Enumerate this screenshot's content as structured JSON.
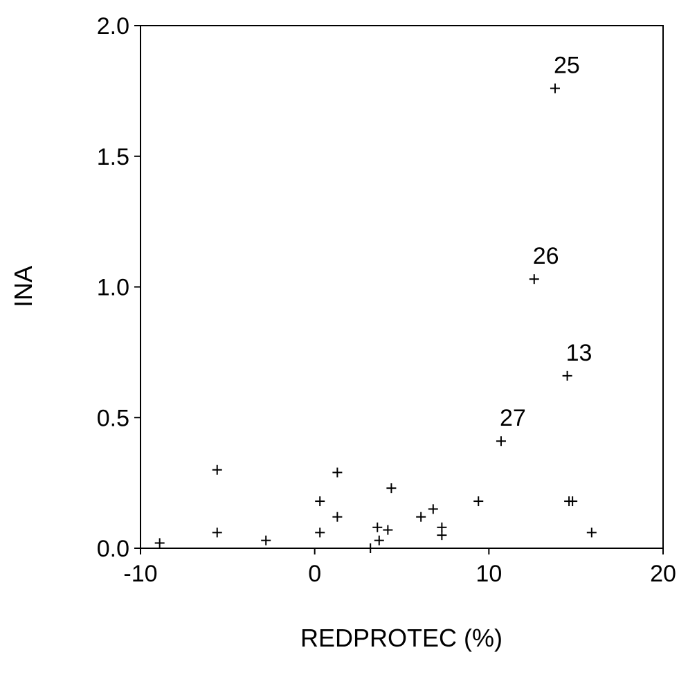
{
  "chart_data": {
    "type": "scatter",
    "title": "",
    "xlabel": "REDPROTEC (%)",
    "ylabel": "INA",
    "xlim": [
      -10,
      20
    ],
    "ylim": [
      0,
      2
    ],
    "xticks": [
      "-10",
      "0",
      "10",
      "20"
    ],
    "yticks": [
      "0.0",
      "0.5",
      "1.0",
      "1.5",
      "2.0"
    ],
    "grid": false,
    "marker": "plus",
    "color": "#000000",
    "points": [
      {
        "x": -8.9,
        "y": 0.02
      },
      {
        "x": -5.6,
        "y": 0.3
      },
      {
        "x": -5.6,
        "y": 0.06
      },
      {
        "x": -2.8,
        "y": 0.03
      },
      {
        "x": 0.3,
        "y": 0.18
      },
      {
        "x": 0.3,
        "y": 0.06
      },
      {
        "x": 1.3,
        "y": 0.29
      },
      {
        "x": 1.3,
        "y": 0.12
      },
      {
        "x": 3.2,
        "y": 0.0
      },
      {
        "x": 3.6,
        "y": 0.08
      },
      {
        "x": 3.7,
        "y": 0.03
      },
      {
        "x": 4.2,
        "y": 0.07
      },
      {
        "x": 4.4,
        "y": 0.23
      },
      {
        "x": 6.1,
        "y": 0.12
      },
      {
        "x": 6.8,
        "y": 0.15
      },
      {
        "x": 7.3,
        "y": 0.08
      },
      {
        "x": 7.3,
        "y": 0.05
      },
      {
        "x": 9.4,
        "y": 0.18
      },
      {
        "x": 10.7,
        "y": 0.41,
        "label": "27"
      },
      {
        "x": 12.6,
        "y": 1.03,
        "label": "26"
      },
      {
        "x": 13.8,
        "y": 1.76,
        "label": "25"
      },
      {
        "x": 14.5,
        "y": 0.66,
        "label": "13"
      },
      {
        "x": 14.6,
        "y": 0.18
      },
      {
        "x": 14.8,
        "y": 0.18
      },
      {
        "x": 15.9,
        "y": 0.06
      }
    ]
  }
}
